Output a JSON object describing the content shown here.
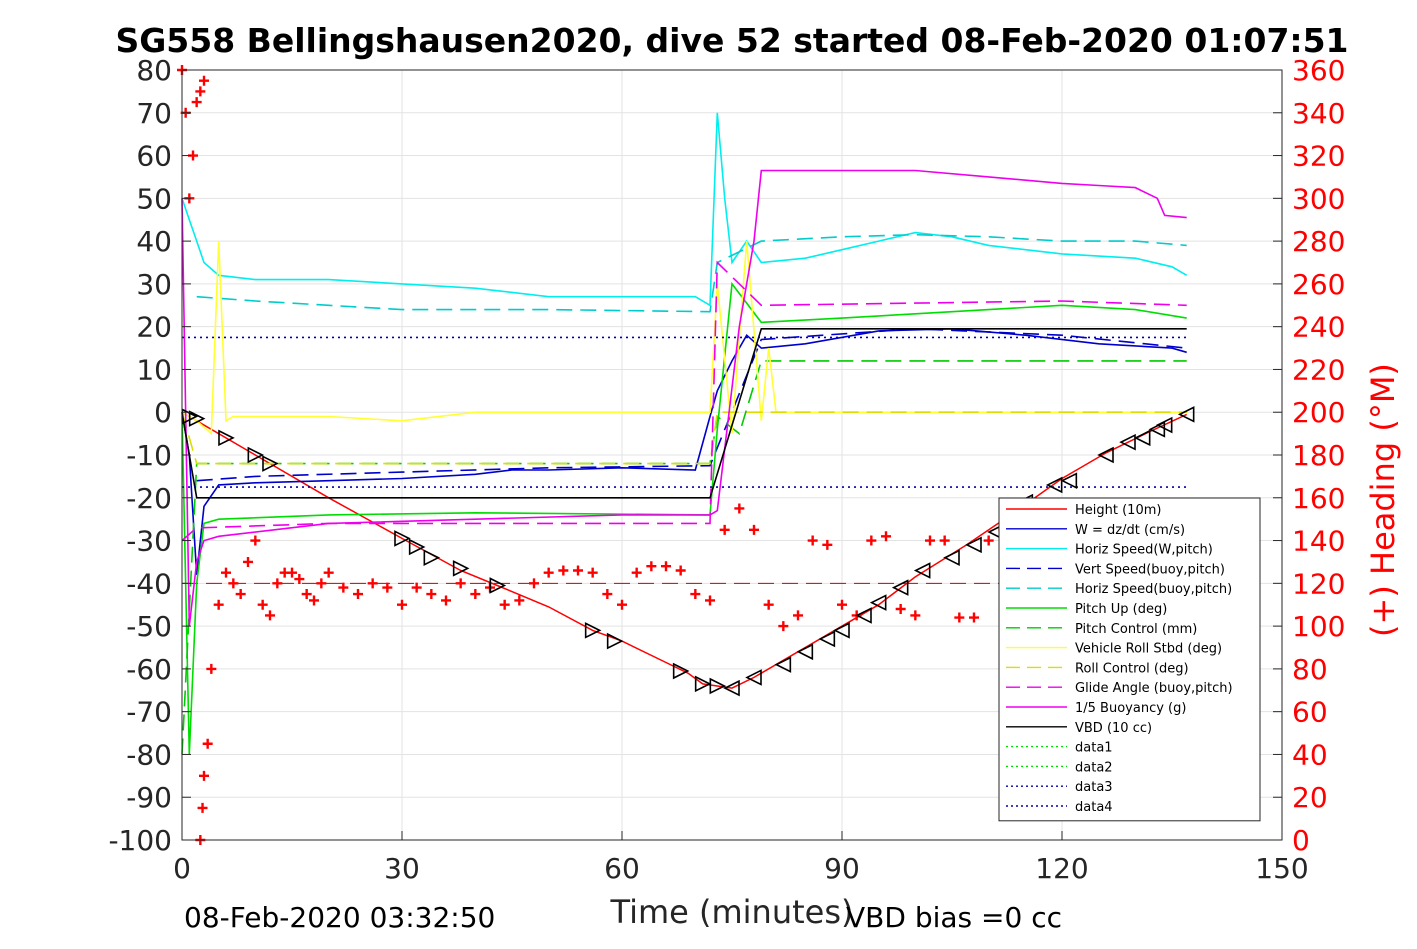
{
  "chart_data": {
    "type": "line",
    "title": "SG558 Bellingshausen2020, dive 52 started 08-Feb-2020 01:07:51",
    "xlabel": "Time (minutes)",
    "ylabel": "",
    "y2label": "(+) Heading (°M)",
    "xlim": [
      0,
      150
    ],
    "ylim": [
      -100,
      80
    ],
    "y2lim": [
      0,
      360
    ],
    "x_ticks": [
      "0",
      "30",
      "60",
      "90",
      "120",
      "150"
    ],
    "y_ticks": [
      "80",
      "70",
      "60",
      "50",
      "40",
      "30",
      "20",
      "10",
      "0",
      "-10",
      "-20",
      "-30",
      "-40",
      "-50",
      "-60",
      "-70",
      "-80",
      "-90",
      "-100"
    ],
    "y2_ticks": [
      "360",
      "340",
      "320",
      "300",
      "280",
      "260",
      "240",
      "220",
      "200",
      "180",
      "160",
      "140",
      "120",
      "100",
      "80",
      "60",
      "40",
      "20",
      "0"
    ],
    "grid": true,
    "legend_position": "bottom-right",
    "footer_left": "08-Feb-2020 03:32:50",
    "footer_right": "VBD bias =0 cc",
    "colors": {
      "height": "#ff0000",
      "w": "#0000cc",
      "horiz_w": "#00eeee",
      "vert_buoy": "#0000cc",
      "horiz_buoy": "#00cccc",
      "pitch": "#00dd00",
      "pitch_ctrl": "#00cc00",
      "roll": "#ffff33",
      "roll_ctrl": "#dddd00",
      "glide": "#ee00ee",
      "buoy": "#ee00ee",
      "vbd": "#000000",
      "heading": "#ff0000",
      "data": "#0000aa"
    },
    "series": [
      {
        "name": "Height (10m)",
        "key": "height",
        "style": "solid",
        "x": [
          0,
          2,
          10,
          20,
          30,
          38,
          43,
          50,
          56,
          60,
          66,
          69,
          71,
          73,
          75,
          78,
          82,
          88,
          95,
          100,
          107,
          113,
          120,
          126,
          132,
          137
        ],
        "y": [
          0,
          -2,
          -10,
          -20,
          -29.5,
          -37,
          -40.5,
          -45.5,
          -51,
          -53.5,
          -58.5,
          -61,
          -63.5,
          -64,
          -64.5,
          -62,
          -58,
          -52,
          -45,
          -38.5,
          -31,
          -24,
          -15.5,
          -9.5,
          -4.5,
          -0.5
        ]
      },
      {
        "name": "W = dz/dt (cm/s)",
        "key": "w",
        "style": "solid",
        "x": [
          0,
          1,
          2,
          3,
          5,
          10,
          20,
          30,
          40,
          45,
          50,
          60,
          70,
          72,
          73,
          75,
          77,
          79,
          85,
          95,
          105,
          115,
          125,
          135,
          137
        ],
        "y": [
          0,
          -10,
          -38,
          -22,
          -17,
          -16.5,
          -16,
          -15.5,
          -14.5,
          -13.5,
          -13.5,
          -13,
          -13.5,
          -1,
          5,
          12,
          18,
          15,
          16,
          19,
          19.5,
          18,
          16,
          15,
          14
        ]
      },
      {
        "name": "Horiz Speed(W,pitch)",
        "key": "horiz_w",
        "style": "solid",
        "x": [
          0,
          1,
          2,
          3,
          5,
          10,
          20,
          30,
          40,
          50,
          60,
          70,
          72,
          73,
          74,
          75,
          77,
          79,
          85,
          90,
          95,
          100,
          105,
          110,
          120,
          130,
          135,
          137
        ],
        "y": [
          50,
          45,
          40,
          35,
          32,
          31,
          31,
          30,
          29,
          27,
          27,
          27,
          25,
          70,
          50,
          35,
          40,
          35,
          36,
          38,
          40,
          42,
          41,
          39,
          37,
          36,
          34,
          32
        ]
      },
      {
        "name": "Vert Speed(buoy,pitch)",
        "key": "vert_buoy",
        "style": "dash",
        "x": [
          2,
          10,
          30,
          50,
          72,
          79,
          100,
          120,
          137
        ],
        "y": [
          -16,
          -15,
          -14,
          -13,
          -12.5,
          17,
          19.5,
          18,
          15
        ]
      },
      {
        "name": "Horiz Speed(buoy,pitch)",
        "key": "horiz_buoy",
        "style": "dash",
        "x": [
          2,
          10,
          20,
          30,
          50,
          72,
          73,
          79,
          90,
          100,
          110,
          120,
          130,
          137
        ],
        "y": [
          27,
          26,
          25,
          24,
          24,
          23.5,
          35,
          40,
          41,
          41.5,
          41,
          40,
          40,
          39
        ]
      },
      {
        "name": "Pitch Up (deg)",
        "key": "pitch",
        "style": "solid",
        "x": [
          0,
          1,
          2,
          3,
          5,
          20,
          40,
          72,
          73,
          75,
          79,
          90,
          100,
          110,
          120,
          130,
          137
        ],
        "y": [
          0,
          -80,
          -40,
          -26,
          -25,
          -24,
          -23.5,
          -24,
          -4,
          30,
          21,
          22,
          23,
          24,
          25,
          24,
          22
        ]
      },
      {
        "name": "Pitch Control (mm)",
        "key": "pitch_ctrl",
        "style": "dash",
        "x": [
          0,
          2,
          3,
          72,
          73,
          76,
          79,
          137
        ],
        "y": [
          -80,
          -12,
          -12,
          -12,
          -1,
          -5,
          12,
          12
        ]
      },
      {
        "name": "Vehicle Roll Stbd (deg)",
        "key": "roll",
        "style": "solid",
        "x": [
          0,
          2,
          4,
          5,
          6,
          7,
          8,
          20,
          30,
          40,
          50,
          60,
          70,
          72,
          73,
          75,
          77,
          79,
          80,
          81,
          90,
          100,
          110,
          120,
          130,
          137
        ],
        "y": [
          0,
          -2,
          -5,
          40,
          -2,
          -1,
          -1,
          -1,
          -2,
          0,
          0,
          0,
          0,
          0,
          30,
          -5,
          40,
          -2,
          15,
          0,
          0,
          0,
          0,
          0,
          0,
          0
        ]
      },
      {
        "name": "Roll Control (deg)",
        "key": "roll_ctrl",
        "style": "dash",
        "x": [
          0,
          2,
          72,
          73,
          79,
          137
        ],
        "y": [
          0,
          -12,
          -12,
          0,
          0,
          0
        ]
      },
      {
        "name": "Glide Angle (buoy,pitch)",
        "key": "glide",
        "style": "dash",
        "x": [
          0,
          2,
          3,
          20,
          50,
          72,
          73,
          79,
          100,
          120,
          137
        ],
        "y": [
          -30,
          -27,
          -27,
          -26,
          -26,
          -26,
          35,
          25,
          25.5,
          26,
          25
        ]
      },
      {
        "name": "1/5 Buoyancy (g)",
        "key": "buoy",
        "style": "solid",
        "x": [
          0,
          1,
          2,
          3,
          5,
          20,
          40,
          60,
          72,
          73,
          76,
          78,
          79,
          90,
          100,
          110,
          120,
          125,
          130,
          133,
          134,
          137
        ],
        "y": [
          50,
          -50,
          -35,
          -30,
          -29,
          -26,
          -25,
          -24,
          -24,
          -23,
          20,
          40,
          56.5,
          56.5,
          56.5,
          55,
          53.5,
          53,
          52.5,
          50,
          46,
          45.5
        ]
      },
      {
        "name": "VBD (10 cc)",
        "key": "vbd",
        "style": "solid",
        "x": [
          0,
          1,
          2,
          72,
          79,
          137
        ],
        "y": [
          0,
          -10,
          -20,
          -20,
          19.5,
          19.5
        ]
      },
      {
        "name": "data1",
        "key": "data1",
        "style": "dot",
        "x": [],
        "y": []
      },
      {
        "name": "data2",
        "key": "data2",
        "style": "dot",
        "x": [],
        "y": []
      },
      {
        "name": "data3",
        "key": "data3",
        "style": "dot",
        "x": [
          0,
          137
        ],
        "y": [
          17.5,
          17.5
        ]
      },
      {
        "name": "data4",
        "key": "data4",
        "style": "dot",
        "x": [
          0,
          137
        ],
        "y": [
          -17.5,
          -17.5
        ]
      }
    ],
    "heading_points": {
      "x": [
        0,
        0.5,
        1,
        1.5,
        2,
        2.5,
        3,
        3,
        2.5,
        2.8,
        3.5,
        4,
        5,
        6,
        7,
        8,
        9,
        10,
        11,
        12,
        13,
        14,
        15,
        16,
        17,
        18,
        19,
        20,
        22,
        24,
        26,
        28,
        30,
        32,
        34,
        36,
        38,
        40,
        42,
        44,
        46,
        48,
        50,
        52,
        54,
        56,
        58,
        60,
        62,
        64,
        66,
        68,
        70,
        72,
        74,
        76,
        78,
        80,
        82,
        84,
        86,
        88,
        90,
        92,
        94,
        96,
        98,
        100,
        102,
        104,
        106,
        108,
        110,
        112
      ],
      "y": [
        360,
        340,
        300,
        320,
        345,
        350,
        355,
        30,
        0,
        15,
        45,
        80,
        110,
        125,
        120,
        115,
        130,
        140,
        110,
        105,
        120,
        125,
        125,
        122,
        115,
        112,
        120,
        125,
        118,
        115,
        120,
        118,
        110,
        118,
        115,
        112,
        120,
        115,
        118,
        110,
        112,
        120,
        125,
        126,
        126,
        125,
        115,
        110,
        125,
        128,
        128,
        126,
        115,
        112,
        145,
        155,
        145,
        110,
        100,
        105,
        140,
        138,
        110,
        105,
        140,
        142,
        108,
        105,
        140,
        140,
        104,
        104,
        140,
        145
      ]
    },
    "triangle_points": {
      "x": [
        1,
        2,
        6,
        10,
        12,
        30,
        32,
        34,
        38,
        43,
        56,
        59,
        68,
        71,
        73,
        75,
        78,
        82,
        85,
        88,
        90,
        93,
        95,
        98,
        101,
        105,
        108,
        111,
        115,
        119,
        121,
        126,
        129,
        131,
        133,
        134,
        137
      ],
      "y": [
        -1,
        -1.5,
        -6,
        -10,
        -12,
        -29.5,
        -31.5,
        -34,
        -36.5,
        -40.5,
        -51,
        -53.5,
        -60.5,
        -63.5,
        -64,
        -64.5,
        -62,
        -59,
        -56,
        -53,
        -51,
        -47.5,
        -44.5,
        -41,
        -37,
        -34,
        -31,
        -28,
        -21,
        -17,
        -16,
        -10,
        -7,
        -6,
        -4,
        -3,
        -0.5
      ]
    },
    "legend_entries": [
      {
        "label": "Height (10m)",
        "key": "height",
        "style": "solid"
      },
      {
        "label": "W = dz/dt (cm/s)",
        "key": "w",
        "style": "solid"
      },
      {
        "label": "Horiz Speed(W,pitch)",
        "key": "horiz_w",
        "style": "solid"
      },
      {
        "label": "Vert Speed(buoy,pitch)",
        "key": "vert_buoy",
        "style": "dash"
      },
      {
        "label": "Horiz Speed(buoy,pitch)",
        "key": "horiz_buoy",
        "style": "dash"
      },
      {
        "label": "Pitch Up (deg)",
        "key": "pitch",
        "style": "solid"
      },
      {
        "label": "Pitch Control (mm)",
        "key": "pitch_ctrl",
        "style": "dash"
      },
      {
        "label": "Vehicle Roll Stbd (deg)",
        "key": "roll",
        "style": "solid"
      },
      {
        "label": "Roll Control (deg)",
        "key": "roll_ctrl",
        "style": "dash"
      },
      {
        "label": "Glide Angle (buoy,pitch)",
        "key": "glide",
        "style": "dash"
      },
      {
        "label": "1/5 Buoyancy (g)",
        "key": "buoy",
        "style": "solid"
      },
      {
        "label": "VBD (10 cc)",
        "key": "vbd",
        "style": "solid"
      },
      {
        "label": "data1",
        "key": "pitch",
        "style": "dot"
      },
      {
        "label": "data2",
        "key": "pitch",
        "style": "dot"
      },
      {
        "label": "data3",
        "key": "data",
        "style": "dot"
      },
      {
        "label": "data4",
        "key": "data",
        "style": "dot"
      }
    ]
  }
}
